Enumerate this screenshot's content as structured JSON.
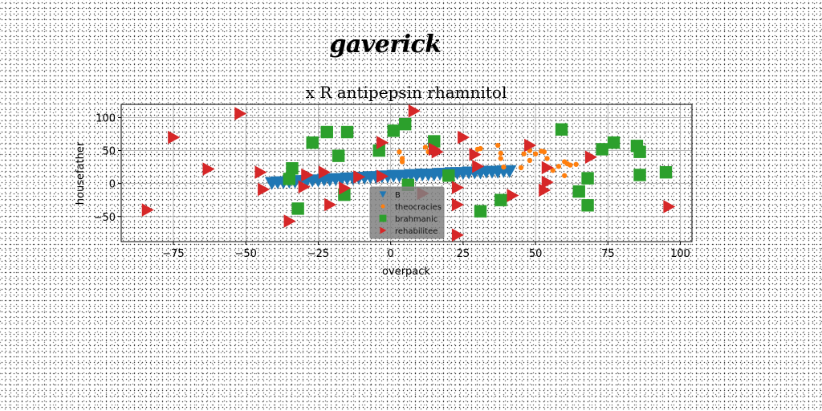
{
  "figure": {
    "suptitle": "gaverick"
  },
  "chart_data": {
    "type": "scatter",
    "title": "x R antipepsin rhamnitol",
    "xlabel": "overpack",
    "ylabel": "housefather",
    "xlim": [
      -93,
      104
    ],
    "ylim": [
      -88,
      120
    ],
    "xticks": [
      -75,
      -50,
      -25,
      0,
      25,
      50,
      75,
      100
    ],
    "yticks": [
      -50,
      0,
      50,
      100
    ],
    "xtick_labels": [
      "−75",
      "−50",
      "−25",
      "0",
      "25",
      "50",
      "75",
      "100"
    ],
    "ytick_labels": [
      "−50",
      "0",
      "50",
      "100"
    ],
    "grid": true,
    "legend_position": "lower center",
    "series": [
      {
        "name": "B",
        "marker": "triangle-down",
        "color": "#1f77b4",
        "points": [
          [
            -41,
            1
          ],
          [
            -39,
            2
          ],
          [
            -37,
            2
          ],
          [
            -35,
            3
          ],
          [
            -33,
            3
          ],
          [
            -31,
            4
          ],
          [
            -29,
            4
          ],
          [
            -27,
            5
          ],
          [
            -25,
            5
          ],
          [
            -23,
            6
          ],
          [
            -21,
            6
          ],
          [
            -19,
            7
          ],
          [
            -17,
            7
          ],
          [
            -15,
            8
          ],
          [
            -13,
            8
          ],
          [
            -11,
            9
          ],
          [
            -9,
            9
          ],
          [
            -7,
            10
          ],
          [
            -5,
            10
          ],
          [
            -3,
            11
          ],
          [
            -1,
            11
          ],
          [
            1,
            12
          ],
          [
            3,
            12
          ],
          [
            5,
            12
          ],
          [
            7,
            13
          ],
          [
            9,
            13
          ],
          [
            11,
            14
          ],
          [
            13,
            14
          ],
          [
            15,
            14
          ],
          [
            17,
            15
          ],
          [
            19,
            15
          ],
          [
            21,
            16
          ],
          [
            23,
            16
          ],
          [
            25,
            16
          ],
          [
            27,
            17
          ],
          [
            29,
            17
          ],
          [
            31,
            17
          ],
          [
            33,
            18
          ],
          [
            35,
            18
          ],
          [
            37,
            18
          ],
          [
            39,
            19
          ],
          [
            41,
            19
          ]
        ]
      },
      {
        "name": "theocracies",
        "marker": "circle",
        "color": "#ff7f0e",
        "points": [
          [
            3,
            48
          ],
          [
            4,
            38
          ],
          [
            4,
            33
          ],
          [
            12,
            55
          ],
          [
            13,
            48
          ],
          [
            16,
            50
          ],
          [
            30,
            52
          ],
          [
            31,
            53
          ],
          [
            37,
            58
          ],
          [
            38,
            46
          ],
          [
            38,
            38
          ],
          [
            39,
            25
          ],
          [
            45,
            24
          ],
          [
            46,
            45
          ],
          [
            48,
            35
          ],
          [
            48,
            50
          ],
          [
            50,
            45
          ],
          [
            52,
            49
          ],
          [
            53,
            48
          ],
          [
            54,
            38
          ],
          [
            56,
            20
          ],
          [
            58,
            26
          ],
          [
            60,
            12
          ],
          [
            60,
            33
          ],
          [
            61,
            30
          ],
          [
            62,
            28
          ],
          [
            64,
            29
          ]
        ]
      },
      {
        "name": "brahmanic",
        "marker": "square",
        "color": "#2ca02c",
        "points": [
          [
            -35,
            7
          ],
          [
            -34,
            23
          ],
          [
            -32,
            -38
          ],
          [
            -27,
            62
          ],
          [
            -22,
            78
          ],
          [
            -18,
            42
          ],
          [
            -16,
            -17
          ],
          [
            -15,
            78
          ],
          [
            -4,
            50
          ],
          [
            1,
            80
          ],
          [
            5,
            90
          ],
          [
            6,
            -2
          ],
          [
            15,
            64
          ],
          [
            20,
            12
          ],
          [
            31,
            -42
          ],
          [
            38,
            -25
          ],
          [
            59,
            82
          ],
          [
            65,
            -12
          ],
          [
            68,
            8
          ],
          [
            68,
            -33
          ],
          [
            73,
            52
          ],
          [
            77,
            62
          ],
          [
            85,
            57
          ],
          [
            86,
            13
          ],
          [
            86,
            48
          ],
          [
            95,
            17
          ]
        ]
      },
      {
        "name": "rehabilitee",
        "marker": "triangle-right",
        "color": "#d62728",
        "points": [
          [
            -84,
            -40
          ],
          [
            -75,
            70
          ],
          [
            -63,
            22
          ],
          [
            -52,
            106
          ],
          [
            -45,
            17
          ],
          [
            -44,
            -9
          ],
          [
            -35,
            -57
          ],
          [
            -30,
            -5
          ],
          [
            -29,
            13
          ],
          [
            -23,
            17
          ],
          [
            -21,
            -32
          ],
          [
            -16,
            -7
          ],
          [
            -11,
            10
          ],
          [
            -3,
            62
          ],
          [
            -3,
            11
          ],
          [
            8,
            110
          ],
          [
            11,
            -15
          ],
          [
            15,
            52
          ],
          [
            16,
            48
          ],
          [
            23,
            -6
          ],
          [
            23,
            -32
          ],
          [
            23,
            -78
          ],
          [
            25,
            70
          ],
          [
            29,
            44
          ],
          [
            30,
            26
          ],
          [
            42,
            -18
          ],
          [
            48,
            58
          ],
          [
            53,
            -10
          ],
          [
            54,
            24
          ],
          [
            54,
            2
          ],
          [
            69,
            40
          ],
          [
            96,
            -35
          ]
        ]
      }
    ]
  }
}
